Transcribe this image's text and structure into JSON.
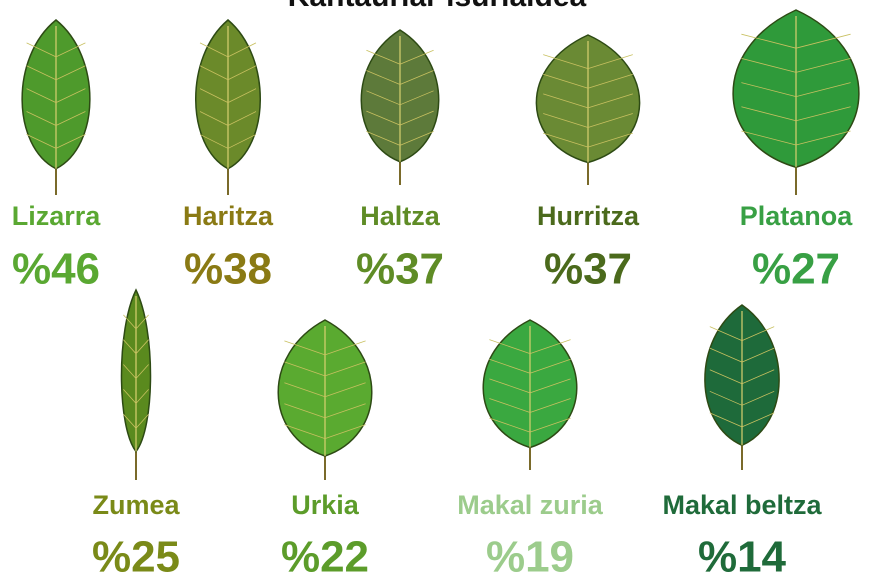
{
  "title": "Kantauriar isurialdea",
  "items": [
    {
      "name": "Lizarra",
      "label": "%46",
      "color": "#5aa832"
    },
    {
      "name": "Haritza",
      "label": "%38",
      "color": "#8a7a14"
    },
    {
      "name": "Haltza",
      "label": "%37",
      "color": "#5f8c26"
    },
    {
      "name": "Hurritza",
      "label": "%37",
      "color": "#4b6a1c"
    },
    {
      "name": "Platanoa",
      "label": "%27",
      "color": "#38a044"
    },
    {
      "name": "Zumea",
      "label": "%25",
      "color": "#7a8a18"
    },
    {
      "name": "Urkia",
      "label": "%22",
      "color": "#5c9c2a"
    },
    {
      "name": "Makal zuria",
      "label": "%19",
      "color": "#9ccc8c"
    },
    {
      "name": "Makal beltza",
      "label": "%14",
      "color": "#1f6b3a"
    }
  ]
}
